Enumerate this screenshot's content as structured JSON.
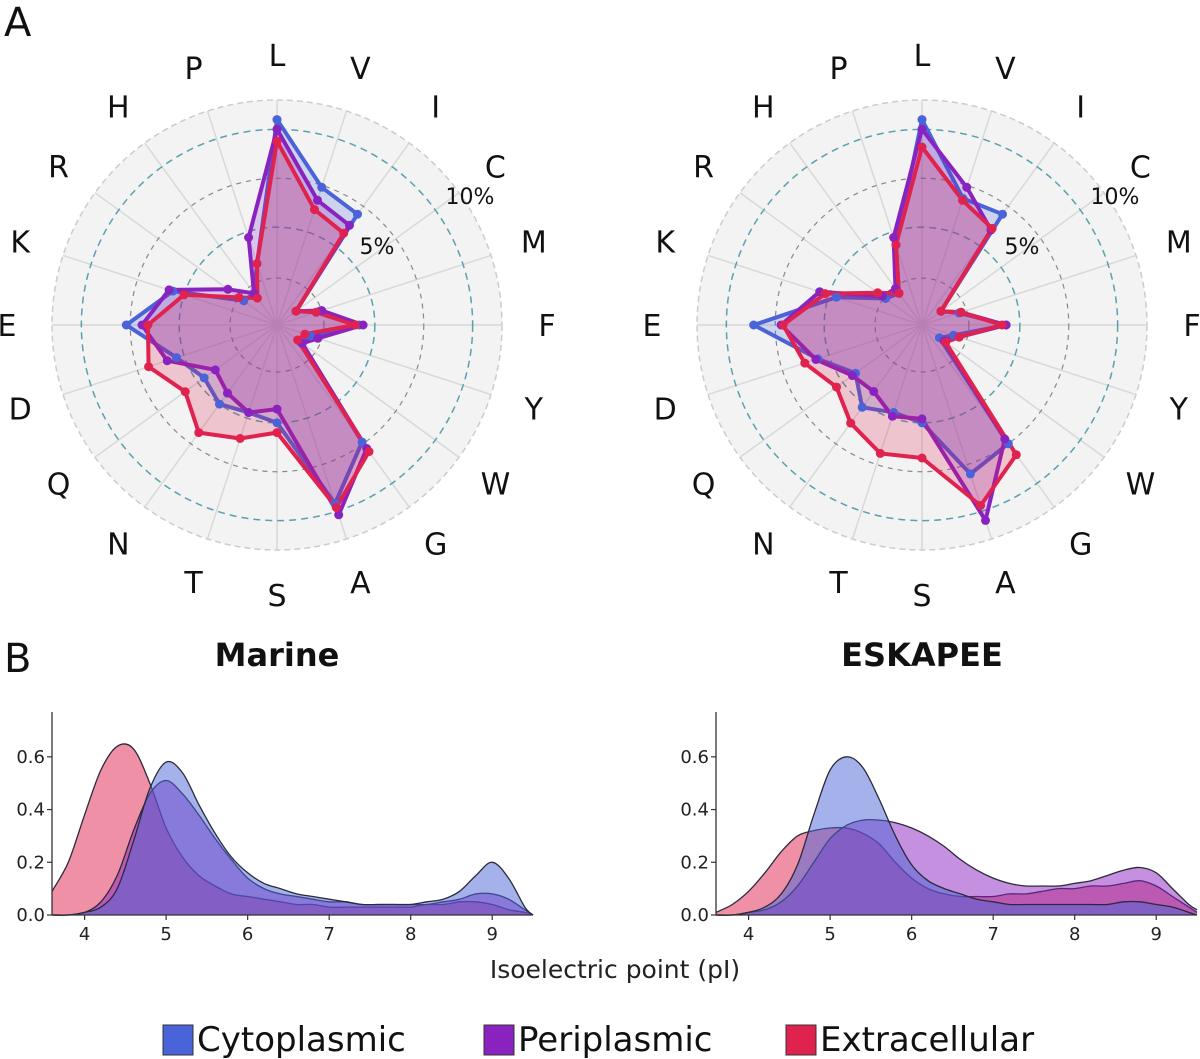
{
  "panel_labels": [
    "A",
    "B"
  ],
  "legend": [
    {
      "label": "Cytoplasmic",
      "color": "#4a63d8"
    },
    {
      "label": "Periplasmic",
      "color": "#8a22c0"
    },
    {
      "label": "Extracellular",
      "color": "#e0224e"
    }
  ],
  "colors": {
    "Cytoplasmic": {
      "stroke": "#4a63d8",
      "fill": "#4a63d8"
    },
    "Periplasmic": {
      "stroke": "#8a22c0",
      "fill": "#8a22c0"
    },
    "Extracellular": {
      "stroke": "#e0224e",
      "fill": "#e0224e"
    },
    "grid": "#cccccc",
    "ring_dashed": "#5aa0b0",
    "radar_bg": "#f3f3f3"
  },
  "chart_data": [
    {
      "type": "radar",
      "panel": "A",
      "subplot": "Marine",
      "axes": [
        "L",
        "V",
        "I",
        "C",
        "M",
        "F",
        "Y",
        "W",
        "G",
        "A",
        "S",
        "T",
        "N",
        "Q",
        "D",
        "E",
        "K",
        "R",
        "H",
        "P"
      ],
      "ring_labels": [
        "5%",
        "10%"
      ],
      "rmax": 11.5,
      "series": [
        {
          "name": "Cytoplasmic",
          "values": [
            10.5,
            7.4,
            7.0,
            1.2,
            2.3,
            4.2,
            1.8,
            1.5,
            7.4,
            9.6,
            5.0,
            4.7,
            5.0,
            4.6,
            5.4,
            7.7,
            5.6,
            2.1,
            2.0,
            3.3
          ]
        },
        {
          "name": "Periplasmic",
          "values": [
            10.0,
            6.7,
            6.3,
            1.2,
            2.4,
            4.4,
            2.2,
            1.6,
            7.8,
            10.2,
            4.3,
            4.7,
            4.3,
            3.9,
            5.9,
            6.9,
            5.8,
            3.1,
            2.0,
            4.7
          ]
        },
        {
          "name": "Extracellular",
          "values": [
            9.4,
            6.2,
            5.8,
            1.2,
            2.1,
            4.0,
            1.5,
            1.3,
            8.0,
            9.8,
            5.5,
            6.1,
            6.8,
            5.8,
            6.9,
            6.6,
            5.0,
            2.4,
            1.7,
            3.3
          ]
        }
      ]
    },
    {
      "type": "radar",
      "panel": "A",
      "subplot": "ESKAPEE",
      "axes": [
        "L",
        "V",
        "I",
        "C",
        "M",
        "F",
        "Y",
        "W",
        "G",
        "A",
        "S",
        "T",
        "N",
        "Q",
        "D",
        "E",
        "K",
        "R",
        "H",
        "P"
      ],
      "ring_labels": [
        "5%",
        "10%"
      ],
      "rmax": 11.5,
      "series": [
        {
          "name": "Cytoplasmic",
          "values": [
            10.5,
            6.8,
            7.0,
            1.2,
            2.0,
            4.3,
            1.7,
            1.1,
            7.5,
            8.0,
            5.0,
            4.7,
            5.2,
            4.2,
            5.6,
            8.6,
            4.6,
            2.3,
            2.0,
            4.3
          ]
        },
        {
          "name": "Periplasmic",
          "values": [
            10.0,
            7.4,
            6.0,
            1.2,
            2.1,
            4.3,
            2.0,
            1.4,
            7.2,
            10.5,
            4.8,
            4.9,
            4.2,
            4.4,
            5.7,
            7.2,
            5.5,
            2.5,
            2.3,
            4.7
          ]
        },
        {
          "name": "Extracellular",
          "values": [
            9.1,
            6.7,
            6.1,
            1.2,
            2.1,
            4.1,
            2.0,
            1.5,
            8.2,
            9.7,
            6.8,
            6.9,
            6.2,
            5.4,
            6.3,
            7.1,
            5.2,
            2.8,
            2.0,
            4.3
          ]
        }
      ]
    },
    {
      "type": "area",
      "panel": "B",
      "title": "Marine",
      "xlim": [
        3.6,
        9.5
      ],
      "ylim": [
        0,
        0.77
      ],
      "xticks": [
        4,
        5,
        6,
        7,
        8,
        9
      ],
      "yticks": [
        0.0,
        0.2,
        0.4,
        0.6
      ],
      "ytick_labels": [
        "0.0",
        "0.2",
        "0.4",
        "0.6"
      ],
      "x": [
        3.6,
        3.8,
        4.0,
        4.2,
        4.4,
        4.6,
        4.8,
        5.0,
        5.2,
        5.4,
        5.6,
        5.8,
        6.0,
        6.2,
        6.4,
        6.6,
        6.8,
        7.0,
        7.2,
        7.4,
        7.6,
        7.8,
        8.0,
        8.2,
        8.4,
        8.6,
        8.8,
        9.0,
        9.2,
        9.4,
        9.5
      ],
      "series": [
        {
          "name": "Cytoplasmic",
          "values": [
            0.0,
            0.0,
            0.01,
            0.03,
            0.1,
            0.28,
            0.48,
            0.58,
            0.54,
            0.42,
            0.31,
            0.22,
            0.16,
            0.12,
            0.1,
            0.08,
            0.07,
            0.06,
            0.05,
            0.04,
            0.04,
            0.04,
            0.04,
            0.05,
            0.06,
            0.09,
            0.15,
            0.2,
            0.14,
            0.03,
            0.0
          ]
        },
        {
          "name": "Periplasmic",
          "values": [
            0.0,
            0.0,
            0.01,
            0.05,
            0.15,
            0.32,
            0.46,
            0.51,
            0.46,
            0.38,
            0.29,
            0.21,
            0.14,
            0.1,
            0.08,
            0.07,
            0.06,
            0.05,
            0.05,
            0.04,
            0.04,
            0.04,
            0.04,
            0.04,
            0.05,
            0.06,
            0.08,
            0.08,
            0.06,
            0.02,
            0.0
          ]
        },
        {
          "name": "Extracellular",
          "values": [
            0.09,
            0.2,
            0.38,
            0.55,
            0.64,
            0.63,
            0.5,
            0.33,
            0.22,
            0.15,
            0.11,
            0.08,
            0.07,
            0.06,
            0.05,
            0.04,
            0.04,
            0.03,
            0.03,
            0.03,
            0.03,
            0.03,
            0.03,
            0.04,
            0.04,
            0.05,
            0.05,
            0.04,
            0.02,
            0.01,
            0.0
          ]
        }
      ]
    },
    {
      "type": "area",
      "panel": "B",
      "title": "ESKAPEE",
      "xlim": [
        3.6,
        9.5
      ],
      "ylim": [
        0,
        0.77
      ],
      "xticks": [
        4,
        5,
        6,
        7,
        8,
        9
      ],
      "yticks": [
        0.0,
        0.2,
        0.4,
        0.6
      ],
      "ytick_labels": [
        "0.0",
        "0.2",
        "0.4",
        "0.6"
      ],
      "xlabel": "Isoelectric point (pI)",
      "x": [
        3.6,
        3.8,
        4.0,
        4.2,
        4.4,
        4.6,
        4.8,
        5.0,
        5.2,
        5.4,
        5.6,
        5.8,
        6.0,
        6.2,
        6.4,
        6.6,
        6.8,
        7.0,
        7.2,
        7.4,
        7.6,
        7.8,
        8.0,
        8.2,
        8.4,
        8.6,
        8.8,
        9.0,
        9.2,
        9.4,
        9.5
      ],
      "series": [
        {
          "name": "Cytoplasmic",
          "values": [
            0.0,
            0.0,
            0.01,
            0.03,
            0.08,
            0.19,
            0.38,
            0.55,
            0.6,
            0.56,
            0.44,
            0.3,
            0.19,
            0.13,
            0.1,
            0.08,
            0.06,
            0.05,
            0.04,
            0.04,
            0.04,
            0.04,
            0.04,
            0.04,
            0.04,
            0.05,
            0.05,
            0.04,
            0.03,
            0.01,
            0.0
          ]
        },
        {
          "name": "Periplasmic",
          "values": [
            0.0,
            0.0,
            0.01,
            0.02,
            0.05,
            0.11,
            0.2,
            0.29,
            0.34,
            0.36,
            0.36,
            0.35,
            0.33,
            0.3,
            0.26,
            0.21,
            0.17,
            0.14,
            0.12,
            0.11,
            0.11,
            0.11,
            0.12,
            0.13,
            0.15,
            0.17,
            0.18,
            0.16,
            0.1,
            0.04,
            0.02
          ]
        },
        {
          "name": "Extracellular",
          "values": [
            0.01,
            0.04,
            0.09,
            0.16,
            0.24,
            0.3,
            0.32,
            0.33,
            0.33,
            0.31,
            0.27,
            0.2,
            0.14,
            0.1,
            0.08,
            0.07,
            0.07,
            0.07,
            0.08,
            0.08,
            0.09,
            0.1,
            0.1,
            0.11,
            0.11,
            0.12,
            0.13,
            0.11,
            0.07,
            0.03,
            0.01
          ]
        }
      ]
    }
  ]
}
